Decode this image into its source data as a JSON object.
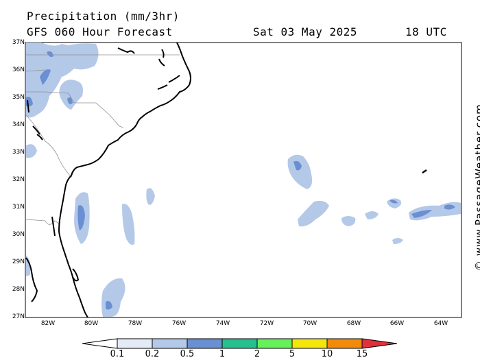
{
  "header": {
    "title": "Precipitation (mm/3hr)",
    "model": "GFS 060 Hour Forecast",
    "date": "Sat 03 May 2025",
    "time": "18 UTC"
  },
  "credit": "© www.PassageWeather.com",
  "lat_labels": [
    "37N",
    "36N",
    "35N",
    "34N",
    "33N",
    "32N",
    "31N",
    "30N",
    "29N",
    "28N",
    "27N"
  ],
  "lon_labels": [
    "82W",
    "80W",
    "78W",
    "76W",
    "74W",
    "72W",
    "70W",
    "68W",
    "66W",
    "64W"
  ],
  "colorbar": {
    "levels": [
      "0.1",
      "0.2",
      "0.5",
      "1",
      "2",
      "5",
      "10",
      "15"
    ],
    "colors": [
      "#e3ebf6",
      "#b4c8e8",
      "#6a8fd2",
      "#26c08f",
      "#66f05a",
      "#f2e60c",
      "#f28a0c",
      "#e0303c"
    ]
  }
}
